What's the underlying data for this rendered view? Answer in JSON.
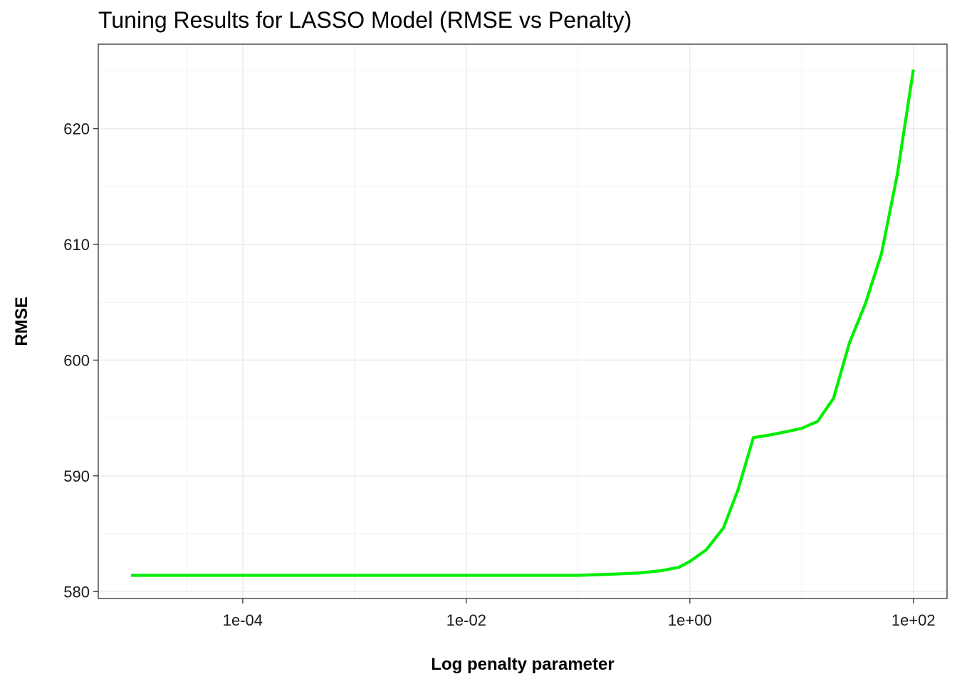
{
  "chart_data": {
    "type": "line",
    "title": "Tuning Results for LASSO Model (RMSE vs Penalty)",
    "xlabel": "Log penalty parameter",
    "ylabel": "RMSE",
    "x_scale": "log10",
    "xlim": [
      5.1e-06,
      200
    ],
    "ylim": [
      579.4,
      627.3
    ],
    "x_ticks": [
      {
        "value": 0.0001,
        "label": "1e-04"
      },
      {
        "value": 0.01,
        "label": "1e-02"
      },
      {
        "value": 1,
        "label": "1e+00"
      },
      {
        "value": 100,
        "label": "1e+02"
      }
    ],
    "y_ticks": [
      {
        "value": 580,
        "label": "580"
      },
      {
        "value": 590,
        "label": "590"
      },
      {
        "value": 600,
        "label": "600"
      },
      {
        "value": 610,
        "label": "610"
      },
      {
        "value": 620,
        "label": "620"
      }
    ],
    "grid": true,
    "line_color": "#00ee00",
    "series": [
      {
        "points": [
          [
            1e-05,
            581.4
          ],
          [
            0.1,
            581.4
          ],
          [
            0.2,
            581.5
          ],
          [
            0.35,
            581.6
          ],
          [
            0.55,
            581.8
          ],
          [
            0.8,
            582.1
          ],
          [
            1.0,
            582.6
          ],
          [
            1.4,
            583.6
          ],
          [
            2.0,
            585.5
          ],
          [
            2.7,
            588.8
          ],
          [
            3.7,
            593.3
          ],
          [
            5.0,
            593.5
          ],
          [
            7.2,
            593.8
          ],
          [
            10.0,
            594.1
          ],
          [
            13.9,
            594.7
          ],
          [
            19.3,
            596.7
          ],
          [
            26.8,
            601.5
          ],
          [
            37.3,
            604.9
          ],
          [
            51.8,
            609.2
          ],
          [
            72.0,
            616.1
          ],
          [
            100.0,
            625.1
          ]
        ]
      }
    ]
  }
}
